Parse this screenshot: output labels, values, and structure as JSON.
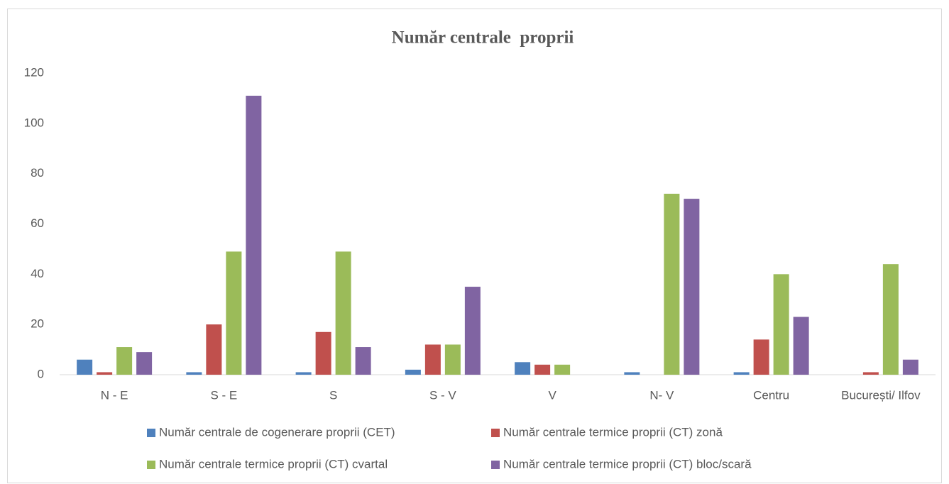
{
  "chart_data": {
    "type": "bar",
    "title": "Număr centrale  proprii",
    "categories": [
      "N - E",
      "S - E",
      "S",
      "S - V",
      "V",
      "N- V",
      "Centru",
      "București/ Ilfov"
    ],
    "series": [
      {
        "name": "Număr centrale de cogenerare proprii (CET)",
        "color": "#4f81bd",
        "values": [
          6,
          1,
          1,
          2,
          5,
          1,
          1,
          0
        ]
      },
      {
        "name": "Număr centrale termice proprii (CT) zonă",
        "color": "#c0504d",
        "values": [
          1,
          20,
          17,
          12,
          4,
          0,
          14,
          1
        ]
      },
      {
        "name": "Număr centrale termice proprii (CT) cvartal",
        "color": "#9bbb59",
        "values": [
          11,
          49,
          49,
          12,
          4,
          72,
          40,
          44
        ]
      },
      {
        "name": "Număr centrale termice proprii (CT) bloc/scară",
        "color": "#8064a2",
        "values": [
          9,
          111,
          11,
          35,
          0,
          70,
          23,
          6
        ]
      }
    ],
    "ylim": [
      0,
      120
    ],
    "yticks": [
      0,
      20,
      40,
      60,
      80,
      100,
      120
    ],
    "grid": false,
    "legend": "bottom"
  }
}
